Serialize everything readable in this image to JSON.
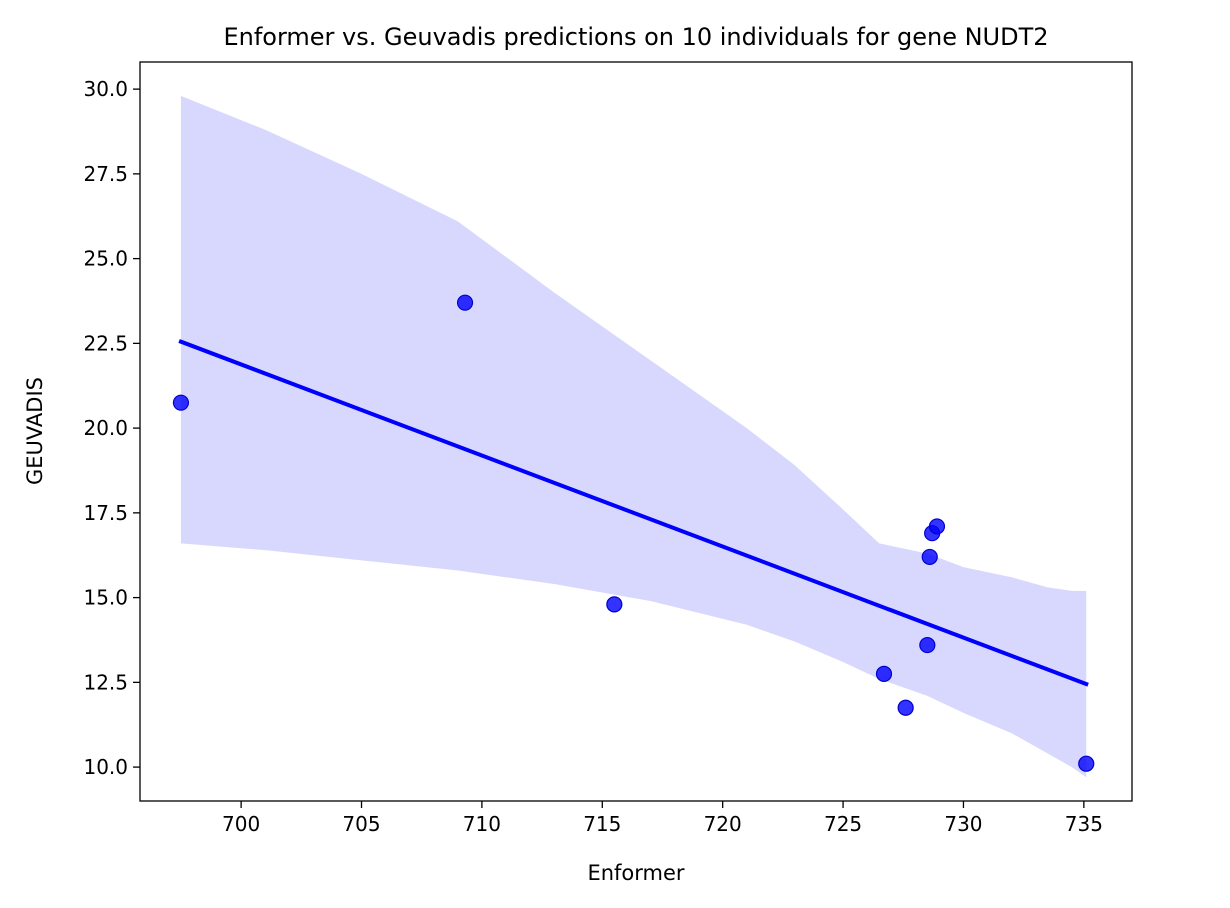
{
  "chart_data": {
    "type": "scatter",
    "title": "Enformer vs. Geuvadis predictions on 10 individuals for gene NUDT2",
    "xlabel": "Enformer",
    "ylabel": "GEUVADIS",
    "xlim": [
      695.8,
      737.0
    ],
    "ylim": [
      9.0,
      30.8
    ],
    "xticks": [
      700,
      705,
      710,
      715,
      720,
      725,
      730,
      735
    ],
    "yticks": [
      10.0,
      12.5,
      15.0,
      17.5,
      20.0,
      22.5,
      25.0,
      27.5,
      30.0
    ],
    "xtick_labels": [
      "700",
      "705",
      "710",
      "715",
      "720",
      "725",
      "730",
      "735"
    ],
    "ytick_labels": [
      "10.0",
      "12.5",
      "15.0",
      "17.5",
      "20.0",
      "22.5",
      "25.0",
      "27.5",
      "30.0"
    ],
    "grid": false,
    "series": [
      {
        "x": [
          697.5,
          709.3,
          715.5,
          726.7,
          727.6,
          728.5,
          728.6,
          728.7,
          728.9,
          735.1
        ],
        "y": [
          20.75,
          23.7,
          14.8,
          12.75,
          11.75,
          13.6,
          16.2,
          16.9,
          17.1,
          10.1
        ]
      }
    ],
    "regression": {
      "x": [
        697.5,
        735.1
      ],
      "y": [
        22.55,
        12.45
      ]
    },
    "confidence_band": {
      "x": [
        697.5,
        701.0,
        705.0,
        709.0,
        713.0,
        717.0,
        721.0,
        723.0,
        725.0,
        726.5,
        728.5,
        730.0,
        732.0,
        733.5,
        734.5,
        735.1
      ],
      "upper": [
        29.8,
        28.8,
        27.5,
        26.1,
        24.0,
        22.0,
        20.0,
        18.9,
        17.6,
        16.6,
        16.3,
        15.9,
        15.6,
        15.3,
        15.2,
        15.2
      ],
      "lower": [
        16.6,
        16.4,
        16.1,
        15.8,
        15.4,
        14.9,
        14.2,
        13.7,
        13.1,
        12.6,
        12.1,
        11.6,
        11.0,
        10.4,
        10.0,
        9.7
      ]
    },
    "colors": {
      "points": "#0000ff",
      "points_edge": "#0000cc",
      "line": "#0000ff",
      "band": "#d8d8ff"
    }
  }
}
